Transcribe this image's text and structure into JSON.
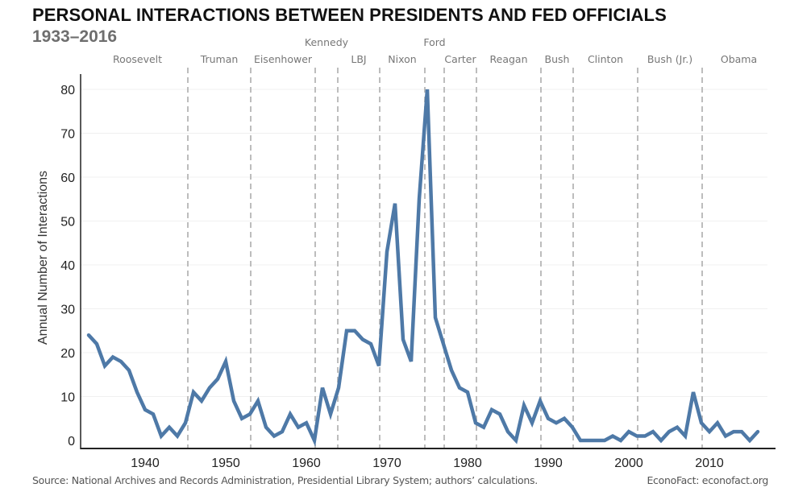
{
  "header": {
    "title": "PERSONAL INTERACTIONS BETWEEN PRESIDENTS AND FED OFFICIALS",
    "subtitle": "1933–2016"
  },
  "footer": {
    "source": "Source: National Archives and Records Administration, Presidential Library System; authors’ calculations.",
    "brand": "EconoFact:  econofact.org"
  },
  "chart_data": {
    "type": "line",
    "title": "PERSONAL INTERACTIONS BETWEEN PRESIDENTS AND FED OFFICIALS",
    "subtitle": "1933–2016",
    "xlabel": "",
    "ylabel": "Annual Number of Interactions",
    "xlim": [
      1932,
      2018
    ],
    "ylim": [
      0,
      83
    ],
    "grid": true,
    "line_color": "#4e79a7",
    "x_ticks": [
      1940,
      1950,
      1960,
      1970,
      1980,
      1990,
      2000,
      2010
    ],
    "x_tick_labels": [
      "1940",
      "1950",
      "1960",
      "1970",
      "1980",
      "1990",
      "2000",
      "2010"
    ],
    "y_ticks": [
      0,
      10,
      20,
      30,
      40,
      50,
      60,
      70,
      80
    ],
    "y_tick_labels": [
      "0",
      "10",
      "20",
      "30",
      "40",
      "50",
      "60",
      "70",
      "80"
    ],
    "x": [
      1933,
      1934,
      1935,
      1936,
      1937,
      1938,
      1939,
      1940,
      1941,
      1942,
      1943,
      1944,
      1945,
      1946,
      1947,
      1948,
      1949,
      1950,
      1951,
      1952,
      1953,
      1954,
      1955,
      1956,
      1957,
      1958,
      1959,
      1960,
      1961,
      1962,
      1963,
      1964,
      1965,
      1966,
      1967,
      1968,
      1969,
      1970,
      1971,
      1972,
      1973,
      1974,
      1975,
      1976,
      1977,
      1978,
      1979,
      1980,
      1981,
      1982,
      1983,
      1984,
      1985,
      1986,
      1987,
      1988,
      1989,
      1990,
      1991,
      1992,
      1993,
      1994,
      1995,
      1996,
      1997,
      1998,
      1999,
      2000,
      2001,
      2002,
      2003,
      2004,
      2005,
      2006,
      2007,
      2008,
      2009,
      2010,
      2011,
      2012,
      2013,
      2014,
      2015,
      2016
    ],
    "values": [
      24,
      22,
      17,
      19,
      18,
      16,
      11,
      7,
      6,
      1,
      3,
      1,
      4,
      11,
      9,
      12,
      14,
      18,
      9,
      5,
      6,
      9,
      3,
      1,
      2,
      6,
      3,
      4,
      0,
      12,
      6,
      12,
      25,
      25,
      23,
      22,
      17,
      43,
      54,
      23,
      18,
      55,
      80,
      28,
      22,
      16,
      12,
      11,
      4,
      3,
      7,
      6,
      2,
      0,
      8,
      4,
      9,
      5,
      4,
      5,
      3,
      0,
      0,
      0,
      0,
      1,
      0,
      2,
      1,
      1,
      2,
      0,
      2,
      3,
      1,
      11,
      4,
      2,
      4,
      1,
      2,
      2,
      0,
      2
    ],
    "presidents": [
      {
        "name": "Roosevelt",
        "label_row": "lower"
      },
      {
        "name": "Truman",
        "label_row": "lower"
      },
      {
        "name": "Eisenhower",
        "label_row": "lower"
      },
      {
        "name": "Kennedy",
        "label_row": "upper"
      },
      {
        "name": "LBJ",
        "label_row": "lower"
      },
      {
        "name": "Nixon",
        "label_row": "lower"
      },
      {
        "name": "Ford",
        "label_row": "upper"
      },
      {
        "name": "Carter",
        "label_row": "lower"
      },
      {
        "name": "Reagan",
        "label_row": "lower"
      },
      {
        "name": "Bush",
        "label_row": "lower"
      },
      {
        "name": "Clinton",
        "label_row": "lower"
      },
      {
        "name": "Bush (Jr.)",
        "label_row": "lower"
      },
      {
        "name": "Obama",
        "label_row": "lower"
      }
    ],
    "term_boundaries": [
      1945.3,
      1953.1,
      1961.1,
      1963.9,
      1969.1,
      1974.7,
      1977.1,
      1981.1,
      1989.1,
      1993.1,
      2001.1,
      2009.1
    ]
  }
}
